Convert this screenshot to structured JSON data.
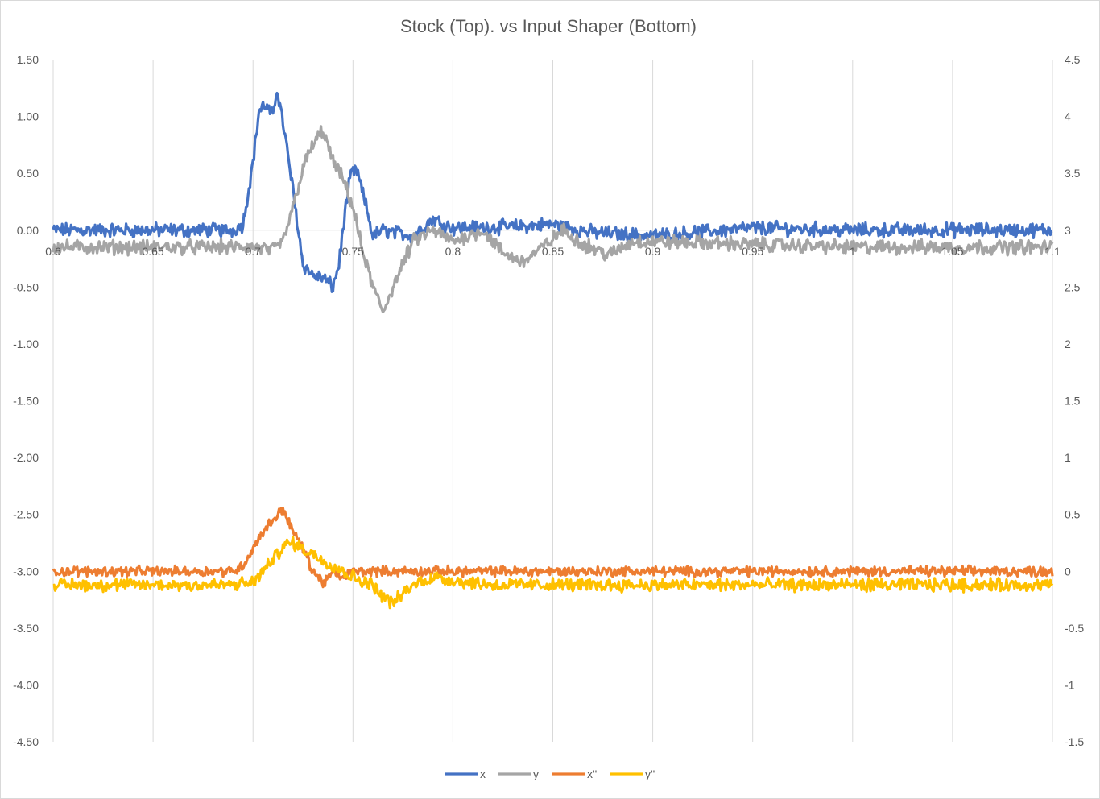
{
  "chart_data": {
    "type": "line",
    "title": "Stock (Top). vs Input  Shaper (Bottom)",
    "x_axis": {
      "range": [
        0.6,
        1.1
      ],
      "ticks": [
        0.6,
        0.65,
        0.7,
        0.75,
        0.8,
        0.85,
        0.9,
        0.95,
        1,
        1.05,
        1.1
      ],
      "tick_labels": [
        "0.6",
        "0.65",
        "0.7",
        "0.75",
        "0.8",
        "0.85",
        "0.9",
        "0.95",
        "1",
        "1.05",
        "1.1"
      ],
      "crosses_primary_at": 0
    },
    "y_axis_left": {
      "range": [
        -4.5,
        1.5
      ],
      "ticks": [
        1.5,
        1.0,
        0.5,
        0.0,
        -0.5,
        -1.0,
        -1.5,
        -2.0,
        -2.5,
        -3.0,
        -3.5,
        -4.0,
        -4.5
      ],
      "tick_labels": [
        "1.50",
        "1.00",
        "0.50",
        "0.00",
        "-0.50",
        "-1.00",
        "-1.50",
        "-2.00",
        "-2.50",
        "-3.00",
        "-3.50",
        "-4.00",
        "-4.50"
      ]
    },
    "y_axis_right": {
      "range": [
        -1.5,
        4.5
      ],
      "ticks": [
        4.5,
        4,
        3.5,
        3,
        2.5,
        2,
        1.5,
        1,
        0.5,
        0,
        -0.5,
        -1,
        -1.5
      ],
      "tick_labels": [
        "4.5",
        "4",
        "3.5",
        "3",
        "2.5",
        "2",
        "1.5",
        "1",
        "0.5",
        "0",
        "-0.5",
        "-1",
        "-1.5"
      ]
    },
    "grid": "vertical",
    "legend_position": "bottom",
    "series": [
      {
        "name": "x",
        "axis": "left",
        "color": "#4472C4",
        "noise": 0.05,
        "points": [
          [
            0.6,
            0.0
          ],
          [
            0.69,
            0.0
          ],
          [
            0.695,
            0.05
          ],
          [
            0.7,
            0.6
          ],
          [
            0.703,
            1.05
          ],
          [
            0.706,
            1.1
          ],
          [
            0.71,
            1.0
          ],
          [
            0.712,
            1.25
          ],
          [
            0.715,
            0.95
          ],
          [
            0.72,
            0.35
          ],
          [
            0.725,
            -0.3
          ],
          [
            0.73,
            -0.4
          ],
          [
            0.735,
            -0.42
          ],
          [
            0.74,
            -0.5
          ],
          [
            0.743,
            -0.3
          ],
          [
            0.746,
            0.15
          ],
          [
            0.749,
            0.5
          ],
          [
            0.752,
            0.52
          ],
          [
            0.756,
            0.25
          ],
          [
            0.76,
            -0.05
          ],
          [
            0.765,
            0.0
          ],
          [
            0.78,
            -0.05
          ],
          [
            0.79,
            0.1
          ],
          [
            0.8,
            0.02
          ],
          [
            0.83,
            0.03
          ],
          [
            0.85,
            0.05
          ],
          [
            0.87,
            -0.02
          ],
          [
            0.9,
            -0.05
          ],
          [
            0.95,
            0.02
          ],
          [
            1.0,
            0.0
          ],
          [
            1.05,
            0.0
          ],
          [
            1.1,
            0.0
          ]
        ]
      },
      {
        "name": "y",
        "axis": "left",
        "color": "#A5A5A5",
        "noise": 0.05,
        "points": [
          [
            0.6,
            -0.15
          ],
          [
            0.7,
            -0.15
          ],
          [
            0.71,
            -0.18
          ],
          [
            0.715,
            -0.1
          ],
          [
            0.72,
            0.2
          ],
          [
            0.725,
            0.55
          ],
          [
            0.73,
            0.75
          ],
          [
            0.735,
            0.88
          ],
          [
            0.74,
            0.6
          ],
          [
            0.745,
            0.45
          ],
          [
            0.75,
            0.2
          ],
          [
            0.755,
            -0.2
          ],
          [
            0.76,
            -0.5
          ],
          [
            0.765,
            -0.72
          ],
          [
            0.77,
            -0.5
          ],
          [
            0.775,
            -0.3
          ],
          [
            0.78,
            -0.1
          ],
          [
            0.79,
            0.0
          ],
          [
            0.8,
            -0.1
          ],
          [
            0.815,
            0.0
          ],
          [
            0.825,
            -0.2
          ],
          [
            0.835,
            -0.28
          ],
          [
            0.845,
            -0.15
          ],
          [
            0.855,
            0.0
          ],
          [
            0.865,
            -0.12
          ],
          [
            0.878,
            -0.22
          ],
          [
            0.89,
            -0.1
          ],
          [
            0.9,
            -0.1
          ],
          [
            1.0,
            -0.15
          ],
          [
            1.1,
            -0.15
          ]
        ]
      },
      {
        "name": "x''",
        "axis": "right",
        "color": "#ED7D31",
        "noise": 0.035,
        "points": [
          [
            0.6,
            0.0
          ],
          [
            0.69,
            0.0
          ],
          [
            0.695,
            0.05
          ],
          [
            0.7,
            0.2
          ],
          [
            0.705,
            0.35
          ],
          [
            0.71,
            0.45
          ],
          [
            0.715,
            0.55
          ],
          [
            0.72,
            0.35
          ],
          [
            0.725,
            0.2
          ],
          [
            0.73,
            0.0
          ],
          [
            0.735,
            -0.1
          ],
          [
            0.74,
            -0.02
          ],
          [
            0.745,
            -0.05
          ],
          [
            0.75,
            0.0
          ],
          [
            0.8,
            0.0
          ],
          [
            0.9,
            0.0
          ],
          [
            1.0,
            0.0
          ],
          [
            1.1,
            0.0
          ]
        ]
      },
      {
        "name": "y''",
        "axis": "right",
        "color": "#FFC000",
        "noise": 0.045,
        "points": [
          [
            0.6,
            -0.12
          ],
          [
            0.69,
            -0.12
          ],
          [
            0.7,
            -0.1
          ],
          [
            0.705,
            0.0
          ],
          [
            0.71,
            0.1
          ],
          [
            0.715,
            0.22
          ],
          [
            0.72,
            0.25
          ],
          [
            0.725,
            0.2
          ],
          [
            0.73,
            0.15
          ],
          [
            0.735,
            0.1
          ],
          [
            0.74,
            0.05
          ],
          [
            0.745,
            0.0
          ],
          [
            0.75,
            -0.05
          ],
          [
            0.76,
            -0.12
          ],
          [
            0.765,
            -0.22
          ],
          [
            0.77,
            -0.28
          ],
          [
            0.775,
            -0.2
          ],
          [
            0.78,
            -0.12
          ],
          [
            0.79,
            -0.05
          ],
          [
            0.8,
            -0.08
          ],
          [
            0.82,
            -0.12
          ],
          [
            0.85,
            -0.12
          ],
          [
            0.9,
            -0.12
          ],
          [
            1.0,
            -0.12
          ],
          [
            1.1,
            -0.12
          ]
        ]
      }
    ]
  }
}
